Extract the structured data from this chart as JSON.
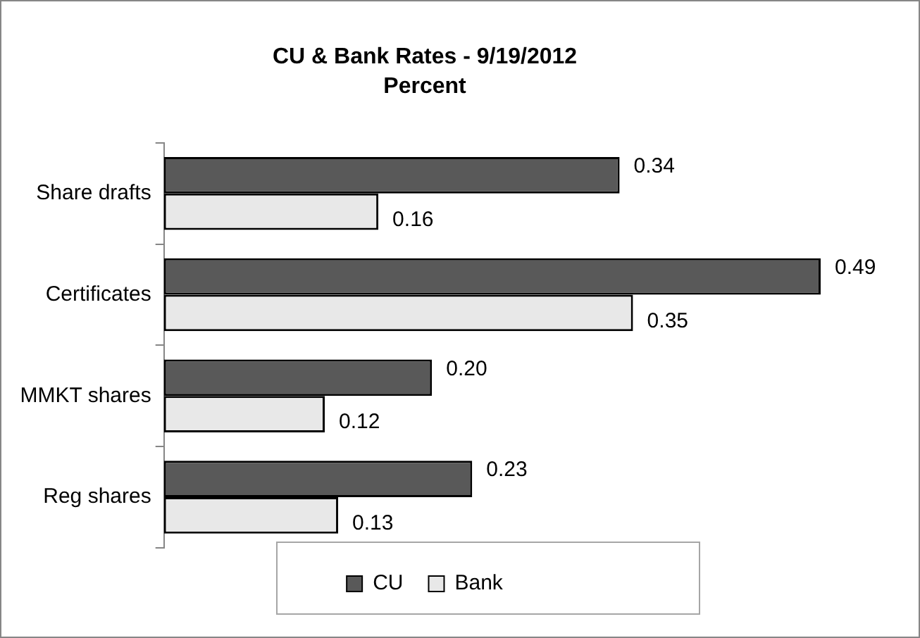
{
  "chart_data": {
    "type": "bar",
    "orientation": "horizontal",
    "title": "CU & Bank Rates - 9/19/2012",
    "subtitle": "Percent",
    "categories": [
      "Share drafts",
      "Certificates",
      "MMKT shares",
      "Reg shares"
    ],
    "series": [
      {
        "name": "CU",
        "color": "#595959",
        "values": [
          0.34,
          0.49,
          0.2,
          0.23
        ],
        "value_labels": [
          "0.34",
          "0.49",
          "0.20",
          "0.23"
        ]
      },
      {
        "name": "Bank",
        "color": "#e8e8e8",
        "values": [
          0.16,
          0.35,
          0.12,
          0.13
        ],
        "value_labels": [
          "0.16",
          "0.35",
          "0.12",
          "0.13"
        ]
      }
    ],
    "legend": "bottom",
    "grid": false
  }
}
